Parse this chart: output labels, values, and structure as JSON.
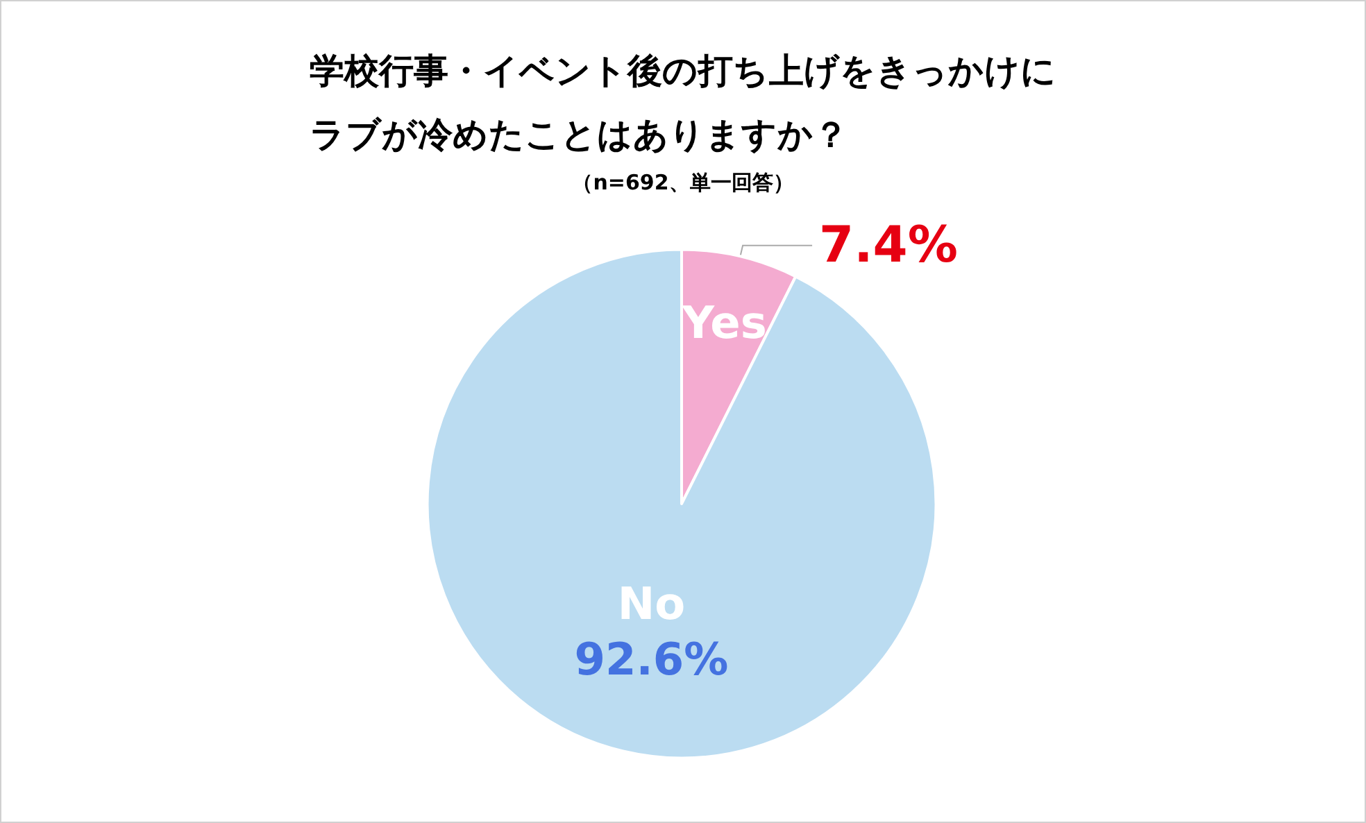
{
  "chart_data": {
    "type": "pie",
    "title": "学校行事・イベント後の打ち上げをきっかけにラブが冷めたことはありますか？",
    "subtitle": "（n=692、単一回答）",
    "categories": [
      "Yes",
      "No"
    ],
    "values": [
      7.4,
      92.6
    ],
    "colors": [
      "#f4abd0",
      "#bbdcf1"
    ],
    "value_labels": [
      "7.4%",
      "92.6%"
    ]
  }
}
